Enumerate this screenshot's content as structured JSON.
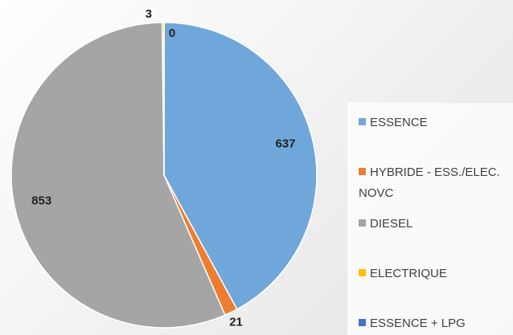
{
  "chart_data": {
    "type": "pie",
    "categories": [
      "ESSENCE",
      "HYBRIDE - ESS./ELEC. NOVC",
      "DIESEL",
      "ELECTRIQUE",
      "ESSENCE + LPG"
    ],
    "values": [
      637,
      21,
      853,
      3,
      0
    ],
    "colors": [
      "#70a7da",
      "#ed7d31",
      "#a5a5a5",
      "#ffc000",
      "#4472c4"
    ],
    "legend": "right"
  }
}
